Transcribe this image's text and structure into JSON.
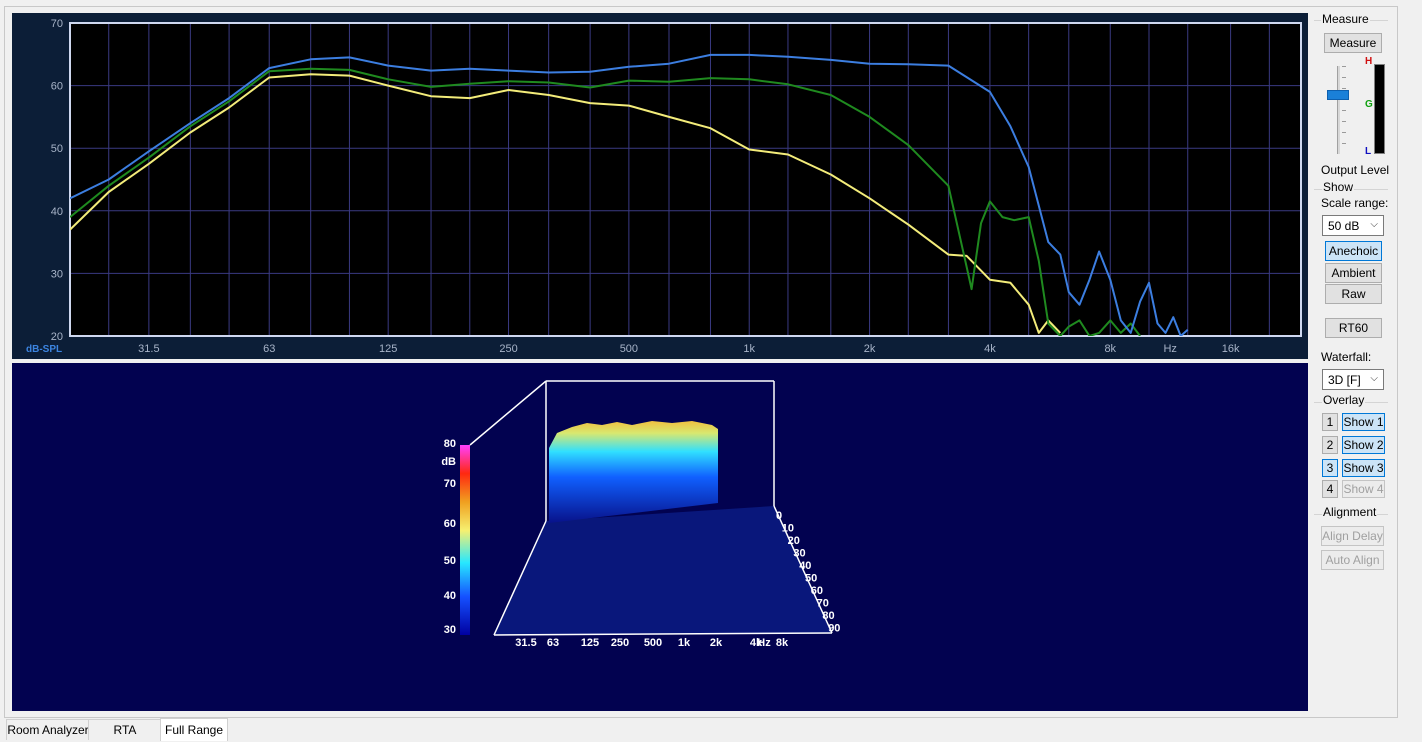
{
  "freq_graph": {
    "y_ticks": [
      "70",
      "60",
      "50",
      "40",
      "30",
      "20"
    ],
    "x_ticks": [
      "31.5",
      "63",
      "125",
      "250",
      "500",
      "1k",
      "2k",
      "4k",
      "8k",
      "Hz",
      "16k"
    ],
    "unit_label": "dB-SPL",
    "series_colors": {
      "blue": "#3c7ee0",
      "green": "#1f8a1f",
      "yellow": "#f3ec7a"
    }
  },
  "chart_data": {
    "type": "line",
    "xlabel": "Hz",
    "ylabel": "dB-SPL",
    "xscale": "log",
    "xlim": [
      20,
      24000
    ],
    "ylim": [
      20,
      70
    ],
    "grid": true,
    "series": [
      {
        "color": "#3c7ee0",
        "x": [
          20,
          25,
          31.5,
          40,
          50,
          63,
          80,
          100,
          125,
          160,
          200,
          250,
          315,
          400,
          500,
          630,
          800,
          1000,
          1250,
          1600,
          2000,
          2500,
          3150,
          4000,
          4500,
          5000,
          5600,
          6000,
          6300,
          6700,
          7100,
          7500,
          8000,
          8500,
          9000,
          9500,
          10000,
          10500,
          11000,
          11500,
          12000,
          12500
        ],
        "y": [
          42,
          45,
          49.5,
          54,
          58,
          62.8,
          64.2,
          64.5,
          63.2,
          62.4,
          62.7,
          62.4,
          62.1,
          62.2,
          63,
          63.5,
          64.9,
          64.9,
          64.6,
          64.1,
          63.5,
          63.4,
          63.2,
          59,
          53.5,
          47,
          35,
          33,
          27,
          25,
          29,
          33.5,
          29,
          22.5,
          20.5,
          25.5,
          28.5,
          22,
          20.5,
          23,
          20,
          21
        ]
      },
      {
        "color": "#1f8a1f",
        "x": [
          20,
          25,
          31.5,
          40,
          50,
          63,
          80,
          100,
          125,
          160,
          200,
          250,
          315,
          400,
          500,
          630,
          800,
          1000,
          1250,
          1600,
          2000,
          2500,
          3150,
          3500,
          3600,
          3800,
          4000,
          4300,
          4600,
          5000,
          5300,
          5600,
          6000,
          6300,
          6700,
          7100,
          7500,
          8000,
          8500,
          9000,
          9500
        ],
        "y": [
          39,
          44,
          48.5,
          53.5,
          57.5,
          62.3,
          62.7,
          62.5,
          61,
          59.8,
          60.3,
          60.7,
          60.5,
          59.7,
          60.8,
          60.6,
          61.2,
          61,
          60.2,
          58.5,
          55,
          50.5,
          44,
          31,
          27.5,
          38,
          41.5,
          39,
          38.5,
          39,
          32,
          22,
          20,
          21.5,
          22.5,
          20,
          20.5,
          22.5,
          20.5,
          22,
          20
        ]
      },
      {
        "color": "#f3ec7a",
        "x": [
          20,
          25,
          31.5,
          40,
          50,
          63,
          80,
          100,
          125,
          160,
          200,
          250,
          315,
          400,
          500,
          630,
          800,
          1000,
          1250,
          1600,
          2000,
          2500,
          3150,
          3500,
          4000,
          4500,
          5000,
          5300,
          5600,
          6000
        ],
        "y": [
          37,
          43,
          47.5,
          52.5,
          56.5,
          61.3,
          61.8,
          61.6,
          60,
          58.3,
          58,
          59.3,
          58.5,
          57.2,
          56.8,
          55,
          53.2,
          49.8,
          49,
          45.8,
          42,
          37.8,
          33,
          32.8,
          29,
          28.5,
          25,
          20.5,
          22.5,
          20.5
        ]
      }
    ]
  },
  "waterfall": {
    "colorbar_ticks": [
      "80",
      "dB",
      "70",
      "60",
      "50",
      "40",
      "30"
    ],
    "freq_ticks": [
      "31.5",
      "63",
      "125",
      "250",
      "500",
      "1k",
      "2k",
      "4k",
      "Hz",
      "8k"
    ],
    "time_ticks": [
      "0",
      "10",
      "20",
      "30",
      "40",
      "50",
      "60",
      "70",
      "80",
      "90"
    ]
  },
  "sidebar": {
    "measure_title": "Measure",
    "measure_button": "Measure",
    "meter_letters": [
      "H",
      "G",
      "L"
    ],
    "output_level_label": "Output Level",
    "show_title": "Show",
    "scale_range_label": "Scale range:",
    "scale_range_value": "50 dB",
    "anechoic_button": "Anechoic",
    "ambient_button": "Ambient",
    "raw_button": "Raw",
    "rt60_button": "RT60",
    "waterfall_label": "Waterfall:",
    "waterfall_value": "3D [F]",
    "overlay_title": "Overlay",
    "overlay_nums": [
      "1",
      "2",
      "3",
      "4"
    ],
    "overlay_shows": [
      "Show 1",
      "Show 2",
      "Show 3",
      "Show 4"
    ],
    "alignment_title": "Alignment",
    "align_delay_button": "Align Delay",
    "auto_align_button": "Auto Align"
  },
  "tabs": [
    "Room Analyzer",
    "RTA",
    "Full Range"
  ]
}
